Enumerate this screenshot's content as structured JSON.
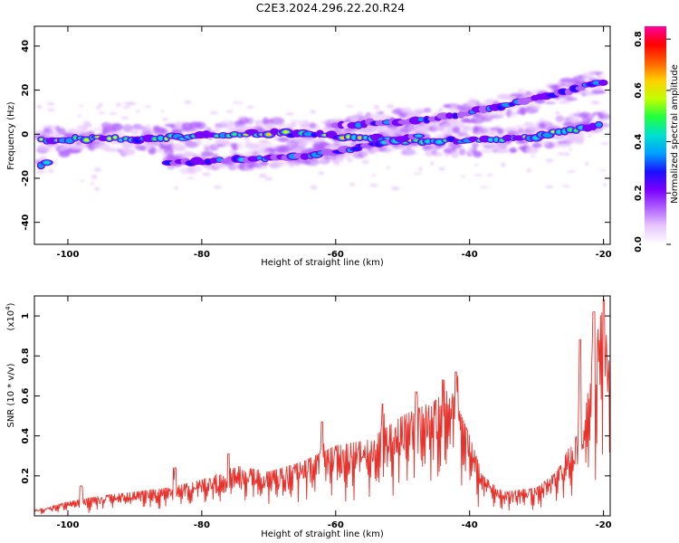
{
  "page_title": "C2E3.2024.296.22.20.R24",
  "colors": {
    "snr_line": "#e8322c",
    "colormap": [
      "#ffffff",
      "#e8c8ff",
      "#b060ff",
      "#7a00ff",
      "#1a10ff",
      "#00a0ff",
      "#00e0d0",
      "#20ff40",
      "#c0ff00",
      "#ffd000",
      "#ff6000",
      "#ff0000",
      "#ff00a0"
    ]
  },
  "chart_data": [
    {
      "type": "heatmap",
      "title": "C2E3.2024.296.22.20.R24",
      "xlabel": "Height of straight line (km)",
      "ylabel": "Frequency (Hz)",
      "xlim": [
        -105,
        -19
      ],
      "ylim": [
        -50,
        49
      ],
      "x_ticks": [
        -100,
        -80,
        -60,
        -40,
        -20
      ],
      "y_ticks": [
        40,
        20,
        0,
        -20,
        -40
      ],
      "colorbar": {
        "label": "Normalized spectral amplitude",
        "range": [
          0,
          0.85
        ],
        "ticks": [
          "0.0",
          "0.2",
          "0.4",
          "0.6",
          "0.8"
        ]
      },
      "traces": [
        {
          "points": [
            [
              -104,
              -3
            ],
            [
              -100,
              -2.5
            ],
            [
              -95,
              -2
            ],
            [
              -90,
              -2.5
            ],
            [
              -85,
              -1.5
            ],
            [
              -80,
              -1
            ],
            [
              -75,
              0
            ],
            [
              -70,
              0.5
            ],
            [
              -65,
              0
            ],
            [
              -60,
              -1
            ],
            [
              -55,
              -2
            ],
            [
              -50,
              -3
            ],
            [
              -45,
              -3
            ],
            [
              -40,
              -3
            ],
            [
              -35,
              -2
            ],
            [
              -30,
              -1
            ],
            [
              -25,
              2
            ],
            [
              -20,
              4
            ]
          ],
          "width": 4,
          "amplitude": 0.6
        },
        {
          "points": [
            [
              -85,
              -13
            ],
            [
              -80,
              -12.5
            ],
            [
              -75,
              -11.5
            ],
            [
              -70,
              -11
            ],
            [
              -65,
              -10
            ],
            [
              -60,
              -8
            ],
            [
              -55,
              -5
            ],
            [
              -50,
              -2
            ],
            [
              -47,
              0
            ]
          ],
          "width": 2.5,
          "amplitude": 0.4
        },
        {
          "points": [
            [
              -60,
              4
            ],
            [
              -55,
              5
            ],
            [
              -50,
              6
            ],
            [
              -45,
              7
            ],
            [
              -40,
              10
            ],
            [
              -35,
              13
            ],
            [
              -30,
              16
            ],
            [
              -25,
              20
            ],
            [
              -20,
              24
            ]
          ],
          "width": 3,
          "amplitude": 0.35
        },
        {
          "points": [
            [
              -104,
              -14
            ],
            [
              -103,
              -13
            ]
          ],
          "width": 2,
          "amplitude": 0.55
        }
      ]
    },
    {
      "type": "line",
      "xlabel": "Height of straight line (km)",
      "ylabel": "SNR (10 * v/v)",
      "y_multiplier_label": "(x10",
      "y_multiplier_exponent": "4",
      "y_multiplier_close": ")",
      "xlim": [
        -105,
        -19
      ],
      "ylim": [
        0,
        1.1
      ],
      "x_ticks": [
        -100,
        -80,
        -60,
        -40,
        -20
      ],
      "y_ticks": [
        0.2,
        0.4,
        0.6,
        0.8,
        1.0
      ],
      "series": [
        {
          "x_start": -105,
          "x_end": -19,
          "samples": 900,
          "envelope": [
            [
              -105,
              0.03
            ],
            [
              -100,
              0.07
            ],
            [
              -95,
              0.1
            ],
            [
              -90,
              0.12
            ],
            [
              -85,
              0.14
            ],
            [
              -80,
              0.18
            ],
            [
              -75,
              0.25
            ],
            [
              -70,
              0.22
            ],
            [
              -65,
              0.27
            ],
            [
              -60,
              0.35
            ],
            [
              -55,
              0.38
            ],
            [
              -50,
              0.5
            ],
            [
              -45,
              0.58
            ],
            [
              -43,
              0.65
            ],
            [
              -40,
              0.4
            ],
            [
              -38,
              0.2
            ],
            [
              -35,
              0.12
            ],
            [
              -30,
              0.14
            ],
            [
              -27,
              0.22
            ],
            [
              -25,
              0.35
            ],
            [
              -23,
              0.45
            ],
            [
              -22,
              0.7
            ],
            [
              -21,
              0.9
            ],
            [
              -20,
              1.08
            ],
            [
              -19,
              0.8
            ]
          ],
          "peaks": [
            [
              -98,
              0.15
            ],
            [
              -84,
              0.24
            ],
            [
              -76,
              0.31
            ],
            [
              -62,
              0.47
            ],
            [
              -53,
              0.56
            ],
            [
              -48,
              0.62
            ],
            [
              -44,
              0.68
            ],
            [
              -42,
              0.72
            ],
            [
              -23.5,
              0.88
            ],
            [
              -21.5,
              1.02
            ],
            [
              -20,
              1.08
            ]
          ]
        }
      ]
    }
  ]
}
